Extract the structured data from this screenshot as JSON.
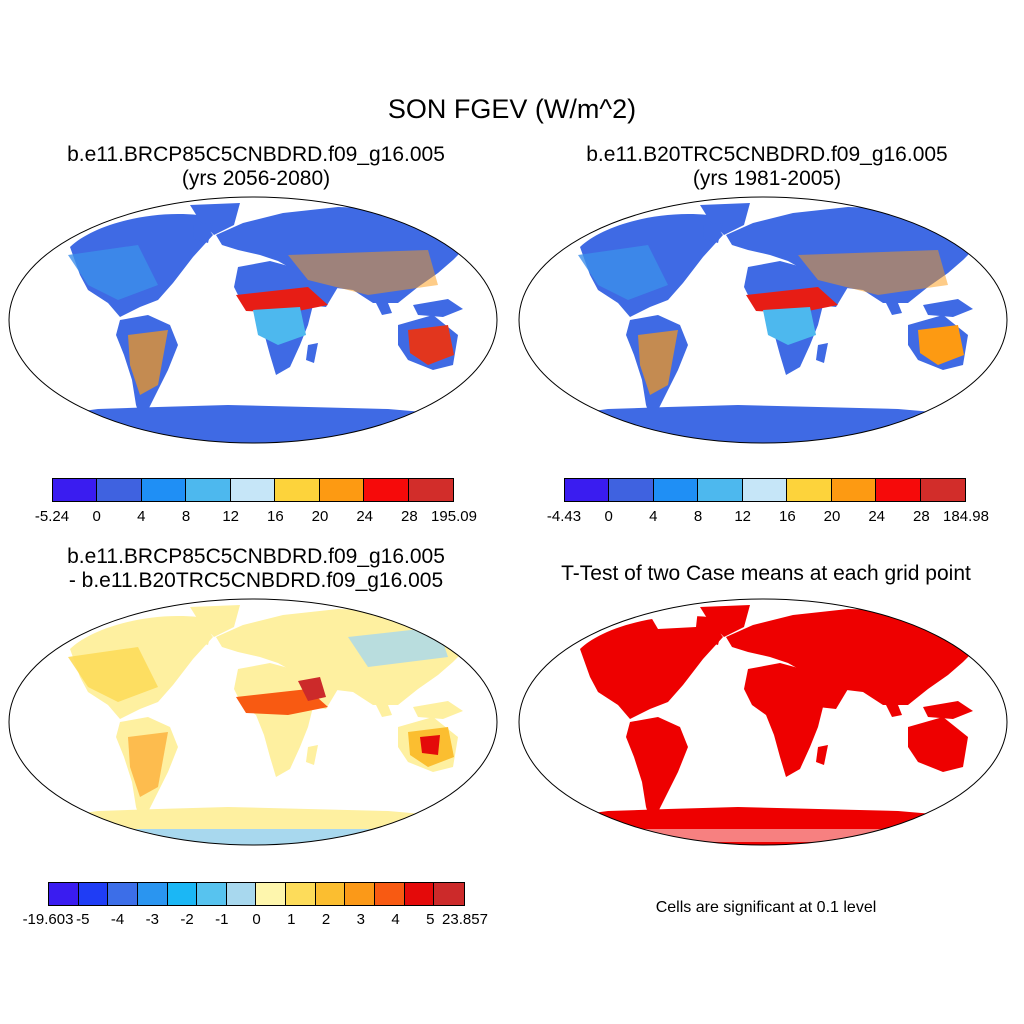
{
  "main_title": "SON FGEV (W/m^2)",
  "panels": [
    {
      "title_line1": "b.e11.BRCP85C5CNBDRD.f09_g16.005",
      "title_line2": "(yrs 2056-2080)"
    },
    {
      "title_line1": "b.e11.B20TRC5CNBDRD.f09_g16.005",
      "title_line2": "(yrs 1981-2005)"
    },
    {
      "title_line1": "b.e11.BRCP85C5CNBDRD.f09_g16.005",
      "title_line2": "- b.e11.B20TRC5CNBDRD.f09_g16.005"
    },
    {
      "title_line1": "T-Test of two Case means at each grid point",
      "title_line2": ""
    }
  ],
  "colorbars": [
    {
      "labels": [
        "-5.24",
        "0",
        "4",
        "8",
        "12",
        "16",
        "20",
        "24",
        "28",
        "195.09"
      ],
      "colors": [
        "#3a1cf0",
        "#3f62e0",
        "#1f8ff5",
        "#4db8ee",
        "#c6e6f8",
        "#fdd33b",
        "#fd9a12",
        "#f60a0a",
        "#d22d2a"
      ]
    },
    {
      "labels": [
        "-4.43",
        "0",
        "4",
        "8",
        "12",
        "16",
        "20",
        "24",
        "28",
        "184.98"
      ],
      "colors": [
        "#3a1cf0",
        "#3f62e0",
        "#1f8ff5",
        "#4db8ee",
        "#c6e6f8",
        "#fdd33b",
        "#fd9a12",
        "#f60a0a",
        "#d22d2a"
      ]
    },
    {
      "labels": [
        "-19.603",
        "-5",
        "-4",
        "-3",
        "-2",
        "-1",
        "0",
        "1",
        "2",
        "3",
        "4",
        "5",
        "23.857"
      ],
      "colors": [
        "#3a1cf0",
        "#1f3df5",
        "#3c6ee8",
        "#2a95f0",
        "#1bb7f5",
        "#57c3ef",
        "#a8d8ee",
        "#fef6ad",
        "#fddc5a",
        "#fbbe30",
        "#fb9918",
        "#f85a12",
        "#e40a0a",
        "#cc2a2a"
      ]
    }
  ],
  "note": "Cells are significant at 0.1 level",
  "chart_data": {
    "type": "heatmap",
    "title": "SON FGEV (W/m^2)",
    "significance_color": "#ee0000"
  }
}
